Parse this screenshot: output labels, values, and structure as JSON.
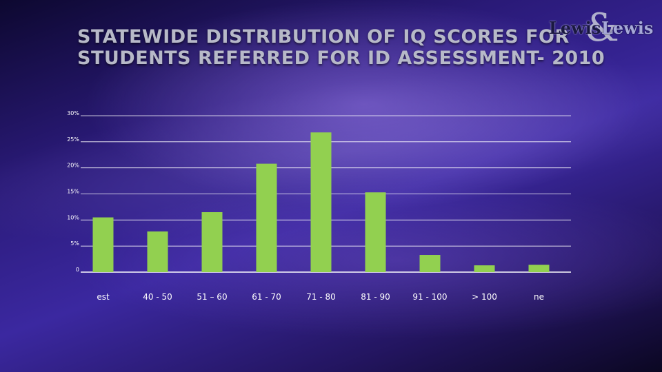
{
  "slide": {
    "title_line1": "Statewide Distribution of IQ Scores for",
    "title_line2": "Students Referred for ID Assessment- 2010"
  },
  "logo": {
    "word1": "Lewis",
    "ampersand": "&",
    "word2": "Lewis"
  },
  "colors": {
    "bar": "#92d050",
    "gridline": "#ffffff",
    "text": "#ffffff"
  },
  "chart_data": {
    "type": "bar",
    "categories": [
      "est",
      "40 - 50",
      "51 – 60",
      "61 - 70",
      "71 - 80",
      "81 - 90",
      "91 - 100",
      "> 100",
      "ne"
    ],
    "values": [
      10.5,
      7.8,
      11.5,
      20.8,
      26.8,
      15.3,
      3.3,
      1.3,
      1.4
    ],
    "yticks": [
      "0",
      "5%",
      "10%",
      "15%",
      "20%",
      "25%",
      "30%"
    ],
    "ylim": [
      0,
      30
    ],
    "grid": true,
    "legend": "none"
  }
}
